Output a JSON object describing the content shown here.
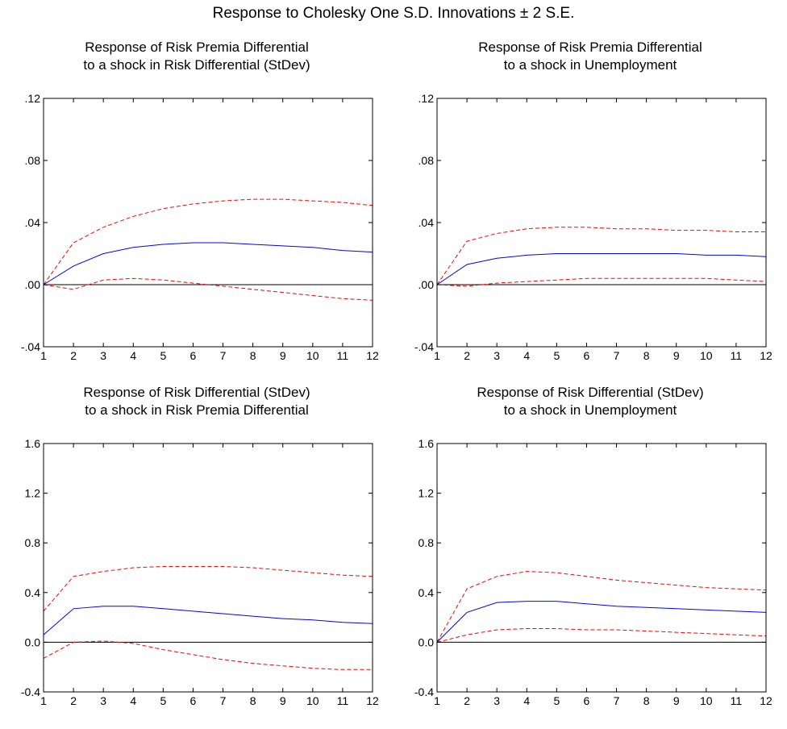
{
  "figure": {
    "title": "Response to Cholesky One S.D. Innovations ± 2 S.E."
  },
  "chart_data": [
    {
      "type": "line",
      "title_lines": [
        "Response of Risk Premia Differential",
        "to a shock in Risk Differential (StDev)"
      ],
      "x": [
        1,
        2,
        3,
        4,
        5,
        6,
        7,
        8,
        9,
        10,
        11,
        12
      ],
      "ylim": [
        -0.04,
        0.12
      ],
      "yticks": [
        -0.04,
        0.0,
        0.04,
        0.08,
        0.12
      ],
      "ytick_labels": [
        "-.04",
        ".00",
        ".04",
        ".08",
        ".12"
      ],
      "zero_line": true,
      "series": [
        {
          "role": "upper",
          "color": "#ff0000",
          "style": "dashed",
          "values": [
            0.0,
            0.027,
            0.037,
            0.044,
            0.049,
            0.052,
            0.054,
            0.055,
            0.055,
            0.054,
            0.053,
            0.051
          ]
        },
        {
          "role": "response",
          "color": "#0000ff",
          "style": "solid",
          "values": [
            0.0,
            0.012,
            0.02,
            0.024,
            0.026,
            0.027,
            0.027,
            0.026,
            0.025,
            0.024,
            0.022,
            0.021
          ]
        },
        {
          "role": "lower",
          "color": "#ff0000",
          "style": "dashed",
          "values": [
            0.0,
            -0.003,
            0.003,
            0.004,
            0.003,
            0.001,
            -0.001,
            -0.003,
            -0.005,
            -0.007,
            -0.009,
            -0.01
          ]
        }
      ]
    },
    {
      "type": "line",
      "title_lines": [
        "Response of Risk Premia Differential",
        "to a shock in Unemployment"
      ],
      "x": [
        1,
        2,
        3,
        4,
        5,
        6,
        7,
        8,
        9,
        10,
        11,
        12
      ],
      "ylim": [
        -0.04,
        0.12
      ],
      "yticks": [
        -0.04,
        0.0,
        0.04,
        0.08,
        0.12
      ],
      "ytick_labels": [
        "-.04",
        ".00",
        ".04",
        ".08",
        ".12"
      ],
      "zero_line": true,
      "series": [
        {
          "role": "upper",
          "color": "#ff0000",
          "style": "dashed",
          "values": [
            0.0,
            0.028,
            0.033,
            0.036,
            0.037,
            0.037,
            0.036,
            0.036,
            0.035,
            0.035,
            0.034,
            0.034
          ]
        },
        {
          "role": "response",
          "color": "#0000ff",
          "style": "solid",
          "values": [
            0.0,
            0.013,
            0.017,
            0.019,
            0.02,
            0.02,
            0.02,
            0.02,
            0.02,
            0.019,
            0.019,
            0.018
          ]
        },
        {
          "role": "lower",
          "color": "#ff0000",
          "style": "dashed",
          "values": [
            0.0,
            -0.001,
            0.001,
            0.002,
            0.003,
            0.004,
            0.004,
            0.004,
            0.004,
            0.004,
            0.003,
            0.002
          ]
        }
      ]
    },
    {
      "type": "line",
      "title_lines": [
        "Response of Risk Differential (StDev)",
        "to a shock in Risk Premia Differential"
      ],
      "x": [
        1,
        2,
        3,
        4,
        5,
        6,
        7,
        8,
        9,
        10,
        11,
        12
      ],
      "ylim": [
        -0.4,
        1.6
      ],
      "yticks": [
        -0.4,
        0.0,
        0.4,
        0.8,
        1.2,
        1.6
      ],
      "ytick_labels": [
        "-0.4",
        "0.0",
        "0.4",
        "0.8",
        "1.2",
        "1.6"
      ],
      "zero_line": true,
      "series": [
        {
          "role": "upper",
          "color": "#ff0000",
          "style": "dashed",
          "values": [
            0.25,
            0.53,
            0.57,
            0.6,
            0.61,
            0.61,
            0.61,
            0.6,
            0.58,
            0.56,
            0.54,
            0.53
          ]
        },
        {
          "role": "response",
          "color": "#0000ff",
          "style": "solid",
          "values": [
            0.06,
            0.27,
            0.29,
            0.29,
            0.27,
            0.25,
            0.23,
            0.21,
            0.19,
            0.18,
            0.16,
            0.15
          ]
        },
        {
          "role": "lower",
          "color": "#ff0000",
          "style": "dashed",
          "values": [
            -0.13,
            0.0,
            0.01,
            -0.01,
            -0.06,
            -0.1,
            -0.14,
            -0.17,
            -0.19,
            -0.21,
            -0.22,
            -0.22
          ]
        }
      ]
    },
    {
      "type": "line",
      "title_lines": [
        "Response of Risk Differential (StDev)",
        "to a shock in Unemployment"
      ],
      "x": [
        1,
        2,
        3,
        4,
        5,
        6,
        7,
        8,
        9,
        10,
        11,
        12
      ],
      "ylim": [
        -0.4,
        1.6
      ],
      "yticks": [
        -0.4,
        0.0,
        0.4,
        0.8,
        1.2,
        1.6
      ],
      "ytick_labels": [
        "-0.4",
        "0.0",
        "0.4",
        "0.8",
        "1.2",
        "1.6"
      ],
      "zero_line": true,
      "series": [
        {
          "role": "upper",
          "color": "#ff0000",
          "style": "dashed",
          "values": [
            0.0,
            0.43,
            0.53,
            0.57,
            0.56,
            0.53,
            0.5,
            0.48,
            0.46,
            0.44,
            0.43,
            0.42
          ]
        },
        {
          "role": "response",
          "color": "#0000ff",
          "style": "solid",
          "values": [
            0.0,
            0.24,
            0.32,
            0.33,
            0.33,
            0.31,
            0.29,
            0.28,
            0.27,
            0.26,
            0.25,
            0.24
          ]
        },
        {
          "role": "lower",
          "color": "#ff0000",
          "style": "dashed",
          "values": [
            0.0,
            0.06,
            0.1,
            0.11,
            0.11,
            0.1,
            0.1,
            0.09,
            0.08,
            0.07,
            0.06,
            0.05
          ]
        }
      ]
    }
  ]
}
